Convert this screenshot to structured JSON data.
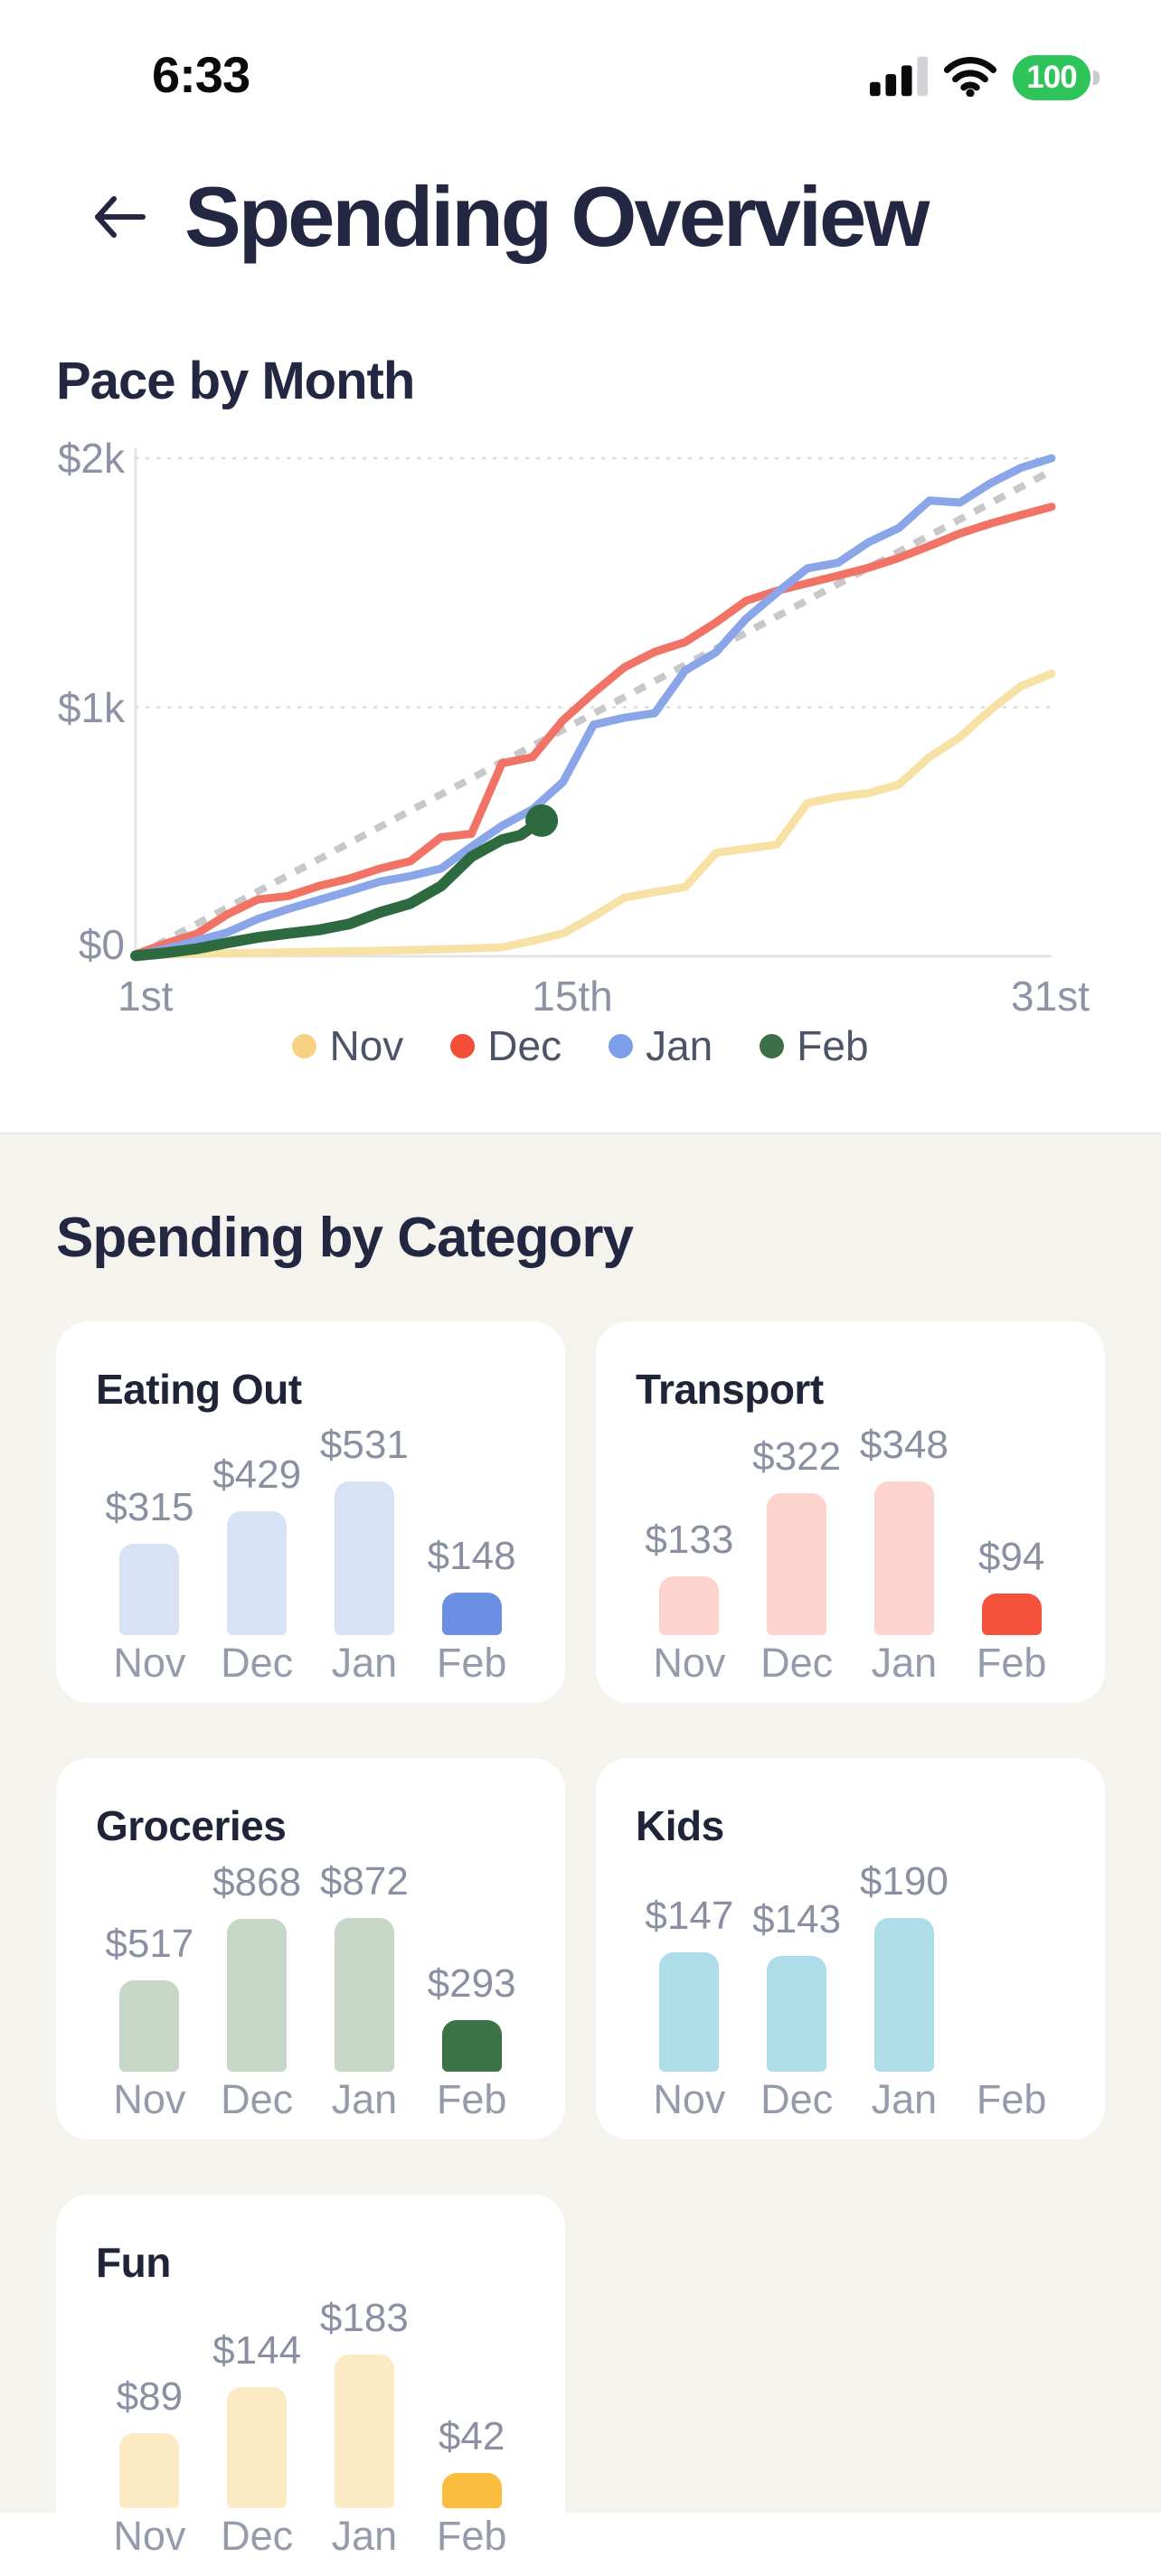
{
  "status_bar": {
    "time": "6:33",
    "battery_level": "100",
    "icons": [
      "cellular-signal-icon",
      "wifi-icon",
      "battery-icon"
    ],
    "battery_color": "#2EC45A"
  },
  "header": {
    "title": "Spending Overview",
    "back_icon": "left-arrow"
  },
  "sections": {
    "pace_title": "Pace by Month",
    "category_title": "Spending by Category"
  },
  "colors": {
    "background": "#FFFFFF",
    "section_background": "#F5F3EE",
    "title_text": "#232741",
    "axis_text": "#8D93A4",
    "legend_text": "#4E5468",
    "value_text": "#8A90A1",
    "month_text": "#959BAB",
    "grid_line": "#DBDBDD",
    "axis_line": "#E4E4E8",
    "pace_dash": "#C8C8CA"
  },
  "legend": [
    {
      "label": "Nov",
      "color": "#F7D283"
    },
    {
      "label": "Dec",
      "color": "#F44D38"
    },
    {
      "label": "Jan",
      "color": "#7D9FE9"
    },
    {
      "label": "Feb",
      "color": "#3C7048"
    }
  ],
  "chart_data": [
    {
      "type": "line",
      "title": "Pace by Month",
      "x_ticks": [
        {
          "label": "1st",
          "day": 1
        },
        {
          "label": "15th",
          "day": 15
        },
        {
          "label": "31st",
          "day": 31
        }
      ],
      "y_ticks": [
        {
          "label": "$0",
          "value": 0
        },
        {
          "label": "$1k",
          "value": 1000
        },
        {
          "label": "$2k",
          "value": 2000
        }
      ],
      "xlim": [
        1,
        31
      ],
      "ylim": [
        0,
        2000
      ],
      "grid": "dotted horizontal lines at $1k and $2k",
      "legend_position": "bottom-center",
      "series": [
        {
          "name": "Pace",
          "role": "reference-pace-line",
          "line_color": "#C8C8CA",
          "dashed": true,
          "points": [
            [
              1,
              0
            ],
            [
              31,
              1950
            ]
          ]
        },
        {
          "name": "Nov",
          "line_color": "#F8E1A4",
          "legend_color": "#F7D283",
          "points": [
            [
              1,
              5
            ],
            [
              3,
              10
            ],
            [
              5,
              14
            ],
            [
              7,
              18
            ],
            [
              9,
              22
            ],
            [
              11,
              28
            ],
            [
              13,
              36
            ],
            [
              14,
              62
            ],
            [
              15,
              92
            ],
            [
              16,
              160
            ],
            [
              17,
              235
            ],
            [
              18,
              258
            ],
            [
              19,
              278
            ],
            [
              20,
              415
            ],
            [
              21,
              432
            ],
            [
              22,
              448
            ],
            [
              23,
              615
            ],
            [
              24,
              640
            ],
            [
              25,
              655
            ],
            [
              26,
              690
            ],
            [
              27,
              800
            ],
            [
              28,
              880
            ],
            [
              29,
              990
            ],
            [
              30,
              1085
            ],
            [
              31,
              1135
            ]
          ]
        },
        {
          "name": "Dec",
          "line_color": "#F07365",
          "legend_color": "#F44D38",
          "points": [
            [
              1,
              8
            ],
            [
              2,
              52
            ],
            [
              3,
              90
            ],
            [
              4,
              168
            ],
            [
              5,
              228
            ],
            [
              6,
              242
            ],
            [
              7,
              282
            ],
            [
              8,
              312
            ],
            [
              9,
              352
            ],
            [
              10,
              382
            ],
            [
              11,
              478
            ],
            [
              12,
              492
            ],
            [
              13,
              775
            ],
            [
              14,
              800
            ],
            [
              15,
              948
            ],
            [
              16,
              1058
            ],
            [
              17,
              1160
            ],
            [
              18,
              1222
            ],
            [
              19,
              1262
            ],
            [
              20,
              1340
            ],
            [
              21,
              1428
            ],
            [
              22,
              1468
            ],
            [
              23,
              1498
            ],
            [
              24,
              1528
            ],
            [
              25,
              1560
            ],
            [
              26,
              1600
            ],
            [
              27,
              1648
            ],
            [
              28,
              1698
            ],
            [
              29,
              1738
            ],
            [
              30,
              1772
            ],
            [
              31,
              1805
            ]
          ]
        },
        {
          "name": "Jan",
          "line_color": "#8AA6E8",
          "legend_color": "#7D9FE9",
          "points": [
            [
              1,
              4
            ],
            [
              2,
              30
            ],
            [
              3,
              62
            ],
            [
              4,
              96
            ],
            [
              5,
              150
            ],
            [
              6,
              190
            ],
            [
              7,
              226
            ],
            [
              8,
              262
            ],
            [
              9,
              300
            ],
            [
              10,
              322
            ],
            [
              11,
              352
            ],
            [
              12,
              440
            ],
            [
              13,
              524
            ],
            [
              14,
              590
            ],
            [
              15,
              700
            ],
            [
              16,
              930
            ],
            [
              17,
              958
            ],
            [
              18,
              976
            ],
            [
              19,
              1148
            ],
            [
              20,
              1220
            ],
            [
              21,
              1356
            ],
            [
              22,
              1460
            ],
            [
              23,
              1558
            ],
            [
              24,
              1580
            ],
            [
              25,
              1662
            ],
            [
              26,
              1720
            ],
            [
              27,
              1830
            ],
            [
              28,
              1822
            ],
            [
              29,
              1900
            ],
            [
              30,
              1962
            ],
            [
              31,
              2000
            ]
          ]
        },
        {
          "name": "Feb",
          "line_color": "#2E6A40",
          "legend_color": "#3C7048",
          "thick": true,
          "end_dot": true,
          "points": [
            [
              1,
              2
            ],
            [
              2,
              14
            ],
            [
              3,
              30
            ],
            [
              4,
              54
            ],
            [
              5,
              76
            ],
            [
              6,
              92
            ],
            [
              7,
              106
            ],
            [
              8,
              130
            ],
            [
              9,
              176
            ],
            [
              10,
              212
            ],
            [
              11,
              282
            ],
            [
              12,
              400
            ],
            [
              13,
              468
            ],
            [
              13.6,
              486
            ],
            [
              14.3,
              545
            ]
          ]
        }
      ]
    },
    {
      "type": "bar",
      "title": "Eating Out",
      "categories": [
        "Nov",
        "Dec",
        "Jan",
        "Feb"
      ],
      "values": [
        315,
        429,
        531,
        148
      ],
      "labels": [
        "$315",
        "$429",
        "$531",
        "$148"
      ],
      "bar_color": "#D7E2F5",
      "highlight_color": "#6B8FE3",
      "highlight_index": 3
    },
    {
      "type": "bar",
      "title": "Transport",
      "categories": [
        "Nov",
        "Dec",
        "Jan",
        "Feb"
      ],
      "values": [
        133,
        322,
        348,
        94
      ],
      "labels": [
        "$133",
        "$322",
        "$348",
        "$94"
      ],
      "bar_color": "#FCD4CD",
      "highlight_color": "#F5523B",
      "highlight_index": 3
    },
    {
      "type": "bar",
      "title": "Groceries",
      "categories": [
        "Nov",
        "Dec",
        "Jan",
        "Feb"
      ],
      "values": [
        517,
        868,
        872,
        293
      ],
      "labels": [
        "$517",
        "$868",
        "$872",
        "$293"
      ],
      "bar_color": "#C6D7C8",
      "highlight_color": "#397346",
      "highlight_index": 3
    },
    {
      "type": "bar",
      "title": "Kids",
      "categories": [
        "Nov",
        "Dec",
        "Jan",
        "Feb"
      ],
      "values": [
        147,
        143,
        190,
        null
      ],
      "labels": [
        "$147",
        "$143",
        "$190",
        null
      ],
      "bar_color": "#ADDDE8",
      "highlight_color": null,
      "highlight_index": null
    },
    {
      "type": "bar",
      "title": "Fun",
      "categories": [
        "Nov",
        "Dec",
        "Jan",
        "Feb"
      ],
      "values": [
        89,
        144,
        183,
        42
      ],
      "labels": [
        "$89",
        "$144",
        "$183",
        "$42"
      ],
      "bar_color": "#FCEAC4",
      "highlight_color": "#FBBD3E",
      "highlight_index": 3
    }
  ]
}
